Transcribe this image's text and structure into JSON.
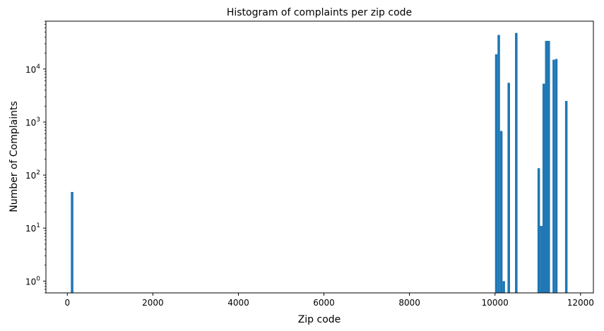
{
  "chart_data": {
    "type": "bar",
    "title": "Histogram of complaints per zip code",
    "xlabel": "Zip code",
    "ylabel": "Number of Complaints",
    "xlim": [
      -500,
      12300
    ],
    "ylim": [
      0.6,
      80000
    ],
    "yscale": "log",
    "grid": false,
    "bar_color": "#1f77b4",
    "bin_width": 58.5,
    "x_ticks": [
      {
        "value": 0,
        "label": "0"
      },
      {
        "value": 2000,
        "label": "2000"
      },
      {
        "value": 4000,
        "label": "4000"
      },
      {
        "value": 6000,
        "label": "6000"
      },
      {
        "value": 8000,
        "label": "8000"
      },
      {
        "value": 10000,
        "label": "10000"
      },
      {
        "value": 12000,
        "label": "12000"
      }
    ],
    "y_ticks": [
      {
        "value": 1,
        "base": "10",
        "exp": "0"
      },
      {
        "value": 10,
        "base": "10",
        "exp": "1"
      },
      {
        "value": 100,
        "base": "10",
        "exp": "2"
      },
      {
        "value": 1000,
        "base": "10",
        "exp": "3"
      },
      {
        "value": 10000,
        "base": "10",
        "exp": "4"
      }
    ],
    "bins": [
      {
        "x": 83,
        "y": 48
      },
      {
        "x": 10000,
        "y": 19000
      },
      {
        "x": 10058,
        "y": 44000
      },
      {
        "x": 10117,
        "y": 680
      },
      {
        "x": 10175,
        "y": 1
      },
      {
        "x": 10292,
        "y": 5500
      },
      {
        "x": 10467,
        "y": 48000
      },
      {
        "x": 10993,
        "y": 135
      },
      {
        "x": 11052,
        "y": 11
      },
      {
        "x": 11110,
        "y": 5300
      },
      {
        "x": 11169,
        "y": 34000
      },
      {
        "x": 11227,
        "y": 34000
      },
      {
        "x": 11344,
        "y": 15000
      },
      {
        "x": 11403,
        "y": 15500
      },
      {
        "x": 11637,
        "y": 2500
      }
    ]
  }
}
